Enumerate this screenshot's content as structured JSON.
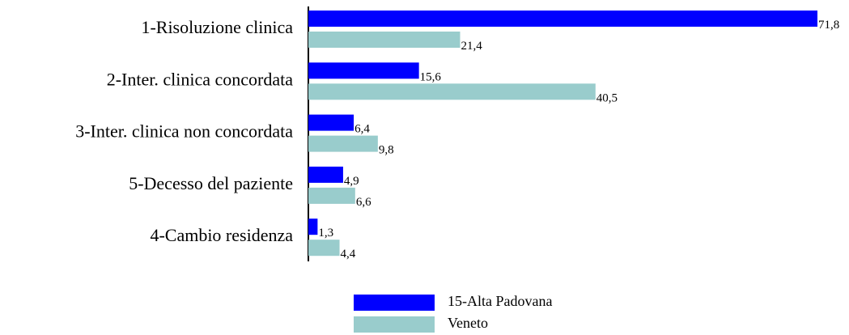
{
  "chart_data": {
    "type": "bar",
    "orientation": "horizontal",
    "categories": [
      "1-Risoluzione clinica",
      "2-Inter. clinica concordata",
      "3-Inter. clinica non concordata",
      "5-Decesso del paziente",
      "4-Cambio residenza"
    ],
    "series": [
      {
        "name": "15-Alta Padovana",
        "color": "#0000ff",
        "values": [
          71.8,
          15.6,
          6.4,
          4.9,
          1.3
        ],
        "value_labels": [
          "71,8",
          "15,6",
          "6,4",
          "4,9",
          "1,3"
        ]
      },
      {
        "name": "Veneto",
        "color": "#99cccc",
        "values": [
          21.4,
          40.5,
          9.8,
          6.6,
          4.4
        ],
        "value_labels": [
          "21,4",
          "40,5",
          "9,8",
          "6,6",
          "4,4"
        ]
      }
    ],
    "legend": "bottom"
  }
}
